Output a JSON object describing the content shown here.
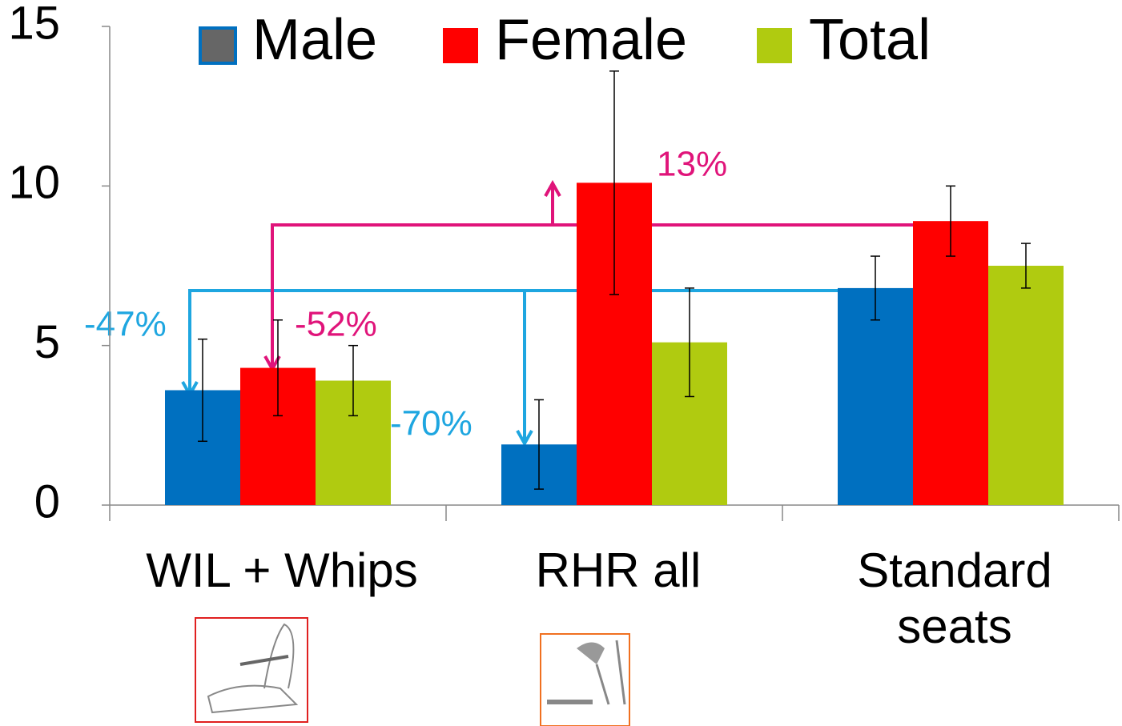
{
  "chart_data": {
    "type": "bar",
    "categories": [
      "WIL + Whips",
      "RHR all",
      "Standard seats"
    ],
    "series": [
      {
        "name": "Male",
        "color": "#0070c0",
        "values": [
          3.6,
          1.9,
          6.8
        ],
        "errors": [
          1.6,
          1.4,
          1.0
        ]
      },
      {
        "name": "Female",
        "color": "#ff0000",
        "values": [
          4.3,
          10.1,
          8.9
        ],
        "errors": [
          1.5,
          3.5,
          1.1
        ]
      },
      {
        "name": "Total",
        "color": "#b0cb10",
        "values": [
          3.9,
          5.1,
          7.5
        ],
        "errors": [
          1.1,
          1.7,
          0.7
        ]
      }
    ],
    "ylim": [
      0,
      15
    ],
    "yticks": [
      0,
      5,
      10,
      15
    ],
    "annotations": [
      "-47%",
      "-52%",
      "-70%",
      "13%"
    ]
  }
}
